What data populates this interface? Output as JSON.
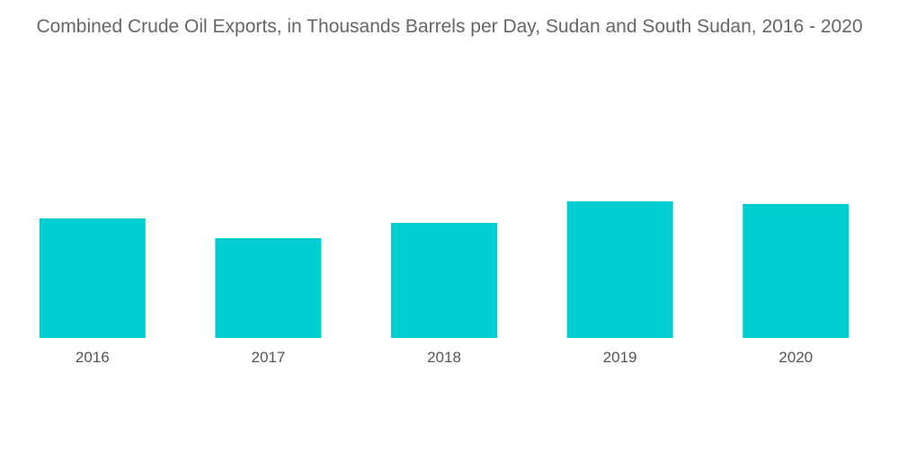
{
  "chart_data": {
    "type": "bar",
    "title": "Combined Crude Oil Exports, in Thousands Barrels per Day, Sudan and South Sudan, 2016 - 2020",
    "categories": [
      "2016",
      "2017",
      "2018",
      "2019",
      "2020"
    ],
    "values": [
      133,
      111,
      128,
      152,
      149
    ],
    "xlabel": "",
    "ylabel": "",
    "ylim": [
      0,
      152
    ],
    "grid": false,
    "legend": "none",
    "colors": {
      "bar": "#00CED1"
    }
  }
}
